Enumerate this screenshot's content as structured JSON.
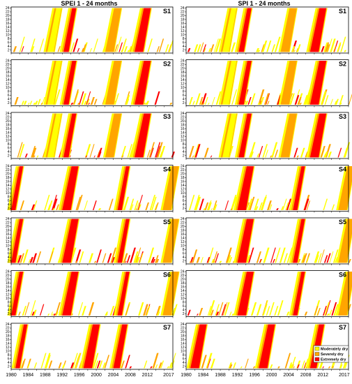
{
  "chart_data": [
    {
      "type": "heatmap",
      "title": "SPEI 1 - 24 months",
      "x": {
        "ticks": [
          "1980",
          "1984",
          "1988",
          "1992",
          "1996",
          "2000",
          "2004",
          "2008",
          "2012",
          "2017"
        ],
        "range": [
          1980,
          2018
        ]
      },
      "y": {
        "ticks": [
          2,
          4,
          6,
          8,
          10,
          12,
          14,
          16,
          18,
          20,
          22,
          24
        ],
        "range": [
          1,
          24
        ]
      },
      "panels": [
        "S1",
        "S2",
        "S3",
        "S4",
        "S5",
        "S6",
        "S7"
      ],
      "classes": [
        "Moderately dry",
        "Severely dry",
        "Extremely dry"
      ],
      "colors": {
        "Moderately dry": "#ffff00",
        "Severely dry": "#ffa500",
        "Extremely dry": "#ff0000"
      },
      "drought_bands": [
        {
          "panels": [
            "S1",
            "S2",
            "S3"
          ],
          "events": [
            {
              "start": 1988.5,
              "end": 1990,
              "class": "Moderately dry"
            },
            {
              "start": 1992.3,
              "end": 1993.5,
              "class": "Extremely dry"
            },
            {
              "start": 2002.5,
              "end": 2004,
              "class": "Severely dry"
            },
            {
              "start": 2009,
              "end": 2011,
              "class": "Extremely dry"
            }
          ]
        },
        {
          "panels": [
            "S4",
            "S5",
            "S6"
          ],
          "events": [
            {
              "start": 1980,
              "end": 1981,
              "class": "Extremely dry"
            },
            {
              "start": 1992,
              "end": 1994,
              "class": "Extremely dry"
            },
            {
              "start": 2005,
              "end": 2006,
              "class": "Extremely dry"
            },
            {
              "start": 2016,
              "end": 2017.5,
              "class": "Severely dry"
            }
          ]
        },
        {
          "panels": [
            "S7"
          ],
          "events": [
            {
              "start": 1981,
              "end": 1982,
              "class": "Extremely dry"
            },
            {
              "start": 1997,
              "end": 1999,
              "class": "Extremely dry"
            },
            {
              "start": 2004,
              "end": 2005.5,
              "class": "Extremely dry"
            }
          ]
        }
      ]
    },
    {
      "type": "heatmap",
      "title": "SPI 1 - 24 months",
      "x": {
        "ticks": [
          "1980",
          "1984",
          "1988",
          "1992",
          "1996",
          "2000",
          "2004",
          "2008",
          "2012",
          "2017"
        ],
        "range": [
          1980,
          2018
        ]
      },
      "y": {
        "ticks": [
          2,
          4,
          6,
          8,
          10,
          12,
          14,
          16,
          18,
          20,
          22,
          24
        ],
        "range": [
          1,
          24
        ]
      },
      "panels": [
        "S1",
        "S2",
        "S3",
        "S4",
        "S5",
        "S6",
        "S7"
      ],
      "legend": [
        "Moderately dry",
        "Severely dry",
        "Extremely dry"
      ],
      "colors": {
        "Moderately dry": "#ffff00",
        "Severely dry": "#ffa500",
        "Extremely dry": "#ff0000"
      },
      "drought_bands": [
        {
          "panels": [
            "S1",
            "S2",
            "S3"
          ],
          "events": [
            {
              "start": 1988.5,
              "end": 1990,
              "class": "Moderately dry"
            },
            {
              "start": 1992.3,
              "end": 1993.5,
              "class": "Extremely dry"
            },
            {
              "start": 2002.5,
              "end": 2004,
              "class": "Severely dry"
            },
            {
              "start": 2009,
              "end": 2011,
              "class": "Extremely dry"
            }
          ]
        },
        {
          "panels": [
            "S4",
            "S5",
            "S6"
          ],
          "events": [
            {
              "start": 1992,
              "end": 1994,
              "class": "Extremely dry"
            },
            {
              "start": 2005,
              "end": 2006,
              "class": "Extremely dry"
            },
            {
              "start": 2016,
              "end": 2017.5,
              "class": "Severely dry"
            }
          ]
        },
        {
          "panels": [
            "S7"
          ],
          "events": [
            {
              "start": 1981,
              "end": 1983,
              "class": "Extremely dry"
            },
            {
              "start": 1997,
              "end": 1999,
              "class": "Extremely dry"
            },
            {
              "start": 2009,
              "end": 2010.5,
              "class": "Extremely dry"
            }
          ]
        }
      ]
    }
  ]
}
